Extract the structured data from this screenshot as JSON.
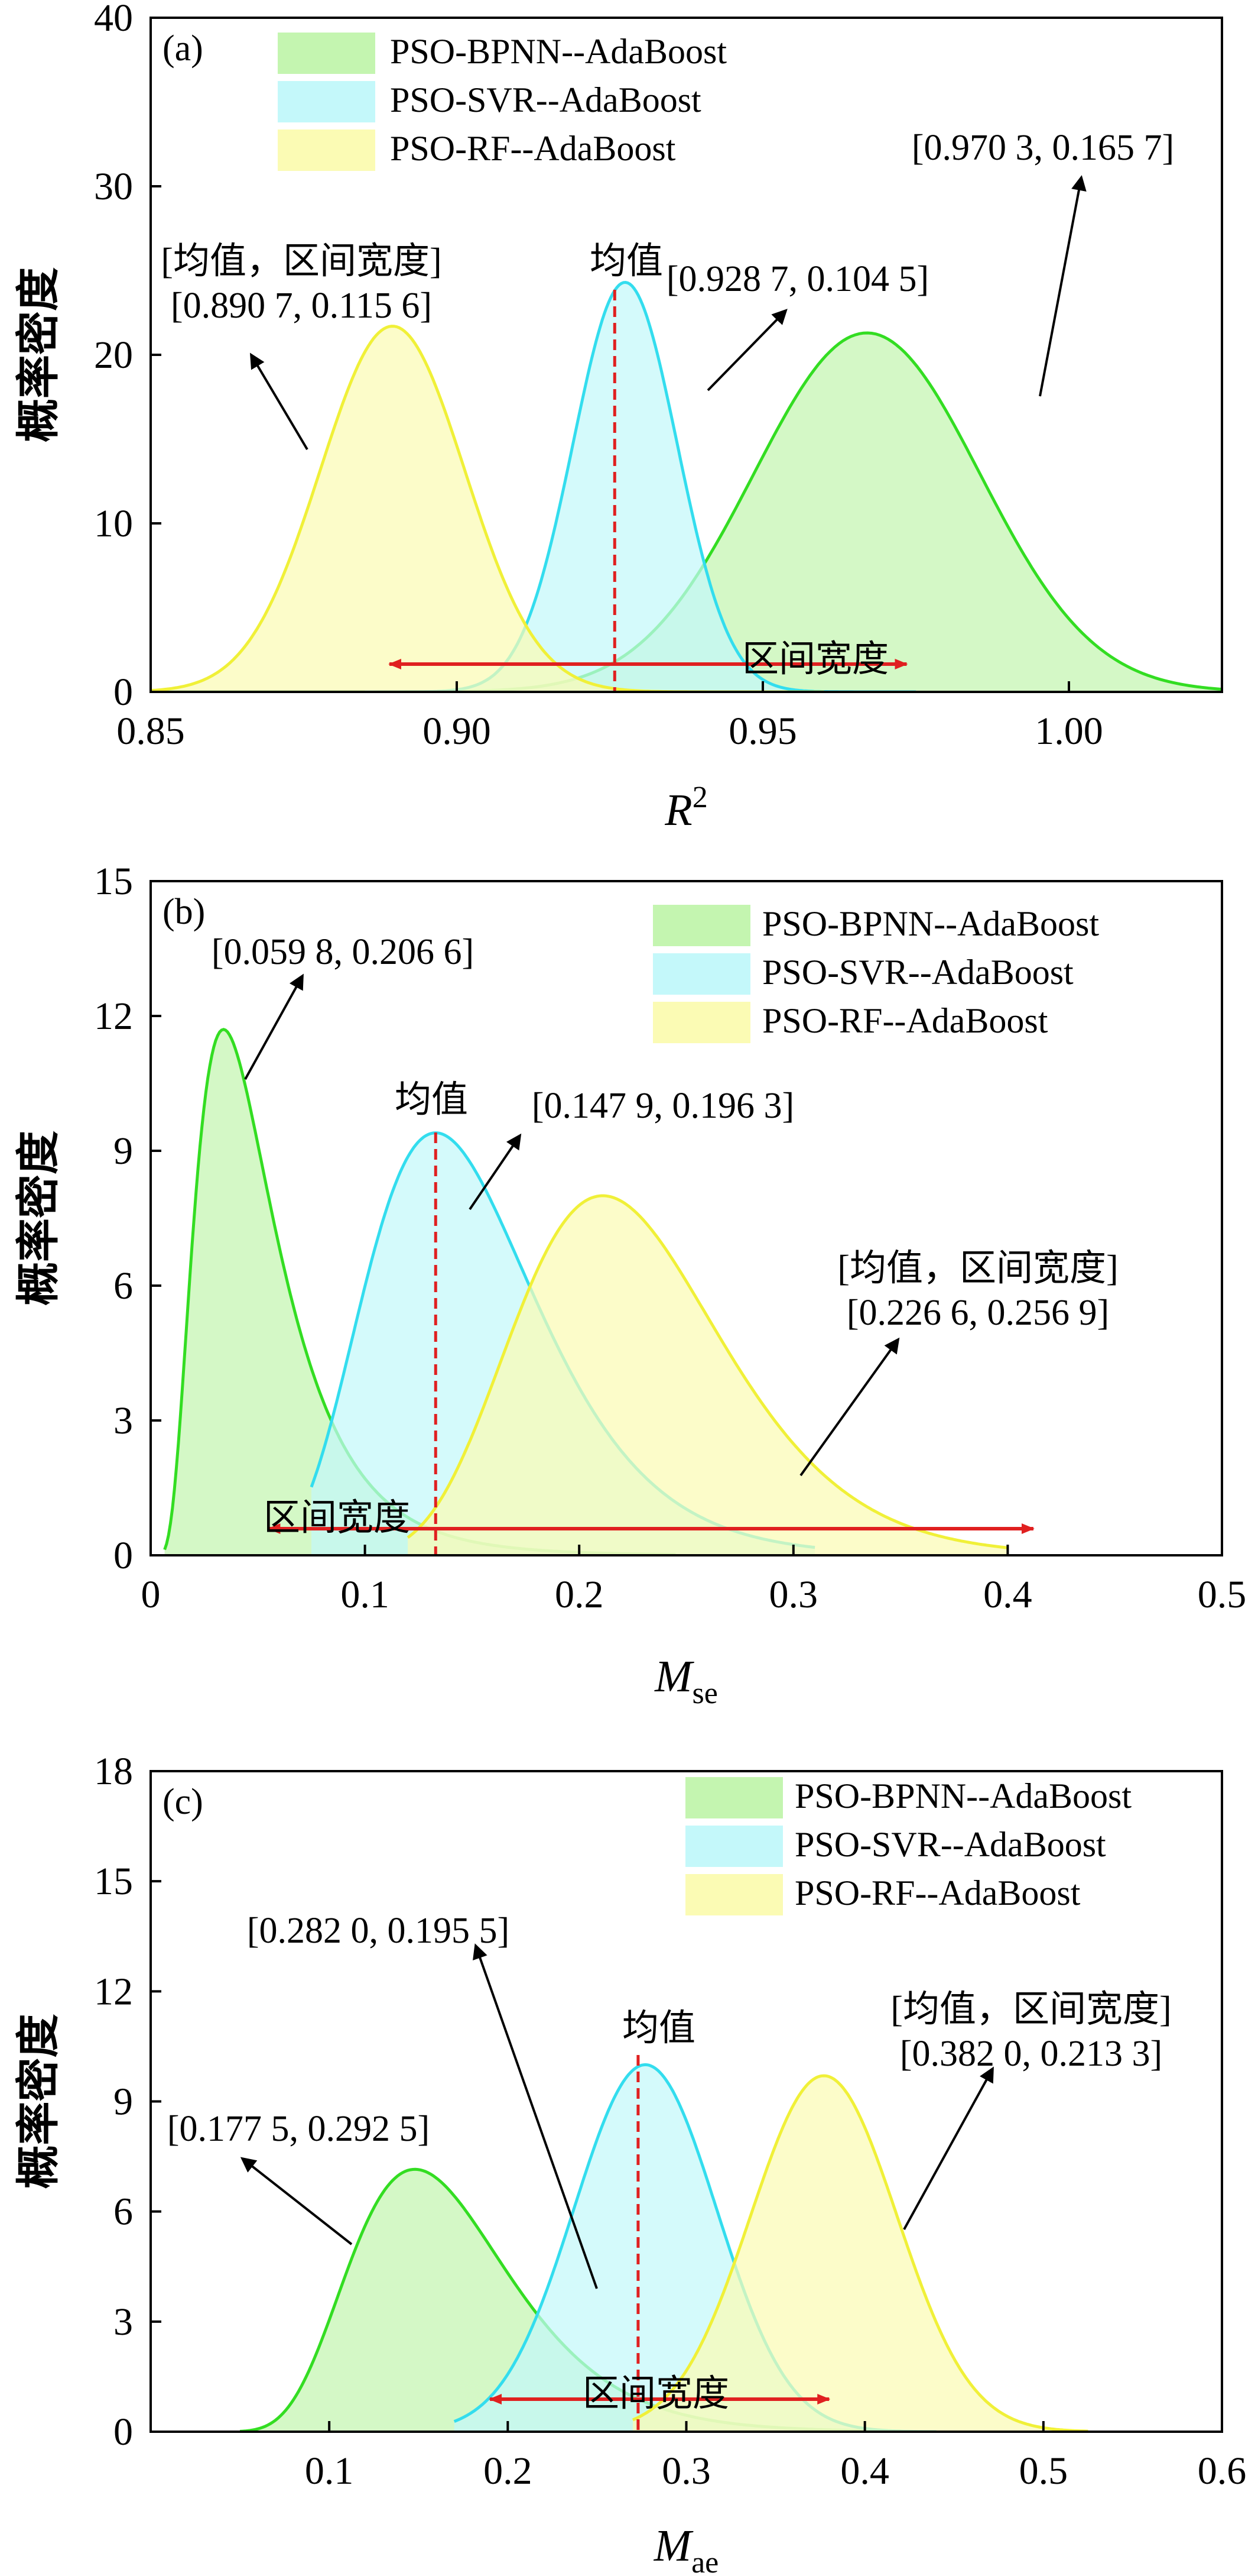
{
  "colors": {
    "bpnn_fill": "#c4f5b0",
    "bpnn_line": "#33dd22",
    "svr_fill": "#c4f8fa",
    "svr_line": "#33ddee",
    "rf_fill": "#fbfbb4",
    "rf_line": "#f0f038",
    "arrow_red": "#e02020",
    "mean_line": "#e02020"
  },
  "ylabel": "概率密度",
  "chart_data": [
    {
      "type": "area",
      "panel_tag": "(a)",
      "xlabel_main": "R",
      "xlabel_sup": "2",
      "ylabel": "概率密度",
      "xlim": [
        0.85,
        1.025
      ],
      "ylim": [
        0,
        40
      ],
      "xticks": [
        "0.85",
        "0.90",
        "0.95",
        "1.00"
      ],
      "yticks": [
        "0",
        "10",
        "20",
        "30",
        "40"
      ],
      "legend": [
        "PSO-BPNN--AdaBoost",
        "PSO-SVR--AdaBoost",
        "PSO-RF--AdaBoost"
      ],
      "legend_position": "top",
      "series": [
        {
          "name": "PSO-BPNN--AdaBoost",
          "mean": 0.9703,
          "interval_width": 0.1657,
          "peak_x": 0.967,
          "peak_y": 21.3,
          "sigma": 0.0185,
          "x_start": 0.85,
          "x_end": 1.025
        },
        {
          "name": "PSO-SVR--AdaBoost",
          "mean": 0.9287,
          "interval_width": 0.1045,
          "peak_x": 0.9275,
          "peak_y": 24.3,
          "sigma": 0.0085,
          "x_start": 0.885,
          "x_end": 0.975
        },
        {
          "name": "PSO-RF--AdaBoost",
          "mean": 0.8907,
          "interval_width": 0.1156,
          "peak_x": 0.8895,
          "peak_y": 21.7,
          "sigma": 0.0118,
          "x_start": 0.85,
          "x_end": 0.96
        }
      ],
      "mean_marker_x": 0.9258,
      "interval_arrow": [
        0.889,
        0.9735
      ],
      "annotations": [
        {
          "lines": [
            "[均值，区间宽度]",
            "[0.890 7, 0.115 6]"
          ]
        },
        {
          "lines": [
            "均值"
          ]
        },
        {
          "lines": [
            "[0.928 7, 0.104 5]"
          ]
        },
        {
          "lines": [
            "[0.970 3, 0.165 7]"
          ]
        },
        {
          "lines": [
            "区间宽度"
          ]
        }
      ]
    },
    {
      "type": "area",
      "panel_tag": "(b)",
      "xlabel_main": "M",
      "xlabel_sub": "se",
      "ylabel": "概率密度",
      "xlim": [
        0,
        0.5
      ],
      "ylim": [
        0,
        15
      ],
      "xticks": [
        "0",
        "0.1",
        "0.2",
        "0.3",
        "0.4",
        "0.5"
      ],
      "yticks": [
        "0",
        "3",
        "6",
        "9",
        "12",
        "15"
      ],
      "legend": [
        "PSO-BPNN--AdaBoost",
        "PSO-SVR--AdaBoost",
        "PSO-RF--AdaBoost"
      ],
      "legend_position": "top-right",
      "series": [
        {
          "name": "PSO-BPNN--AdaBoost",
          "mean": 0.0598,
          "interval_width": 0.2066,
          "peak_x": 0.034,
          "peak_y": 11.7,
          "lognormal_sigma": 0.55,
          "x_start": 0.0065,
          "x_end": 0.245
        },
        {
          "name": "PSO-SVR--AdaBoost",
          "mean": 0.1479,
          "interval_width": 0.1963,
          "peak_x": 0.133,
          "peak_y": 9.4,
          "lognormal_sigma": 0.3,
          "x_start": 0.075,
          "x_end": 0.31
        },
        {
          "name": "PSO-RF--AdaBoost",
          "mean": 0.2266,
          "interval_width": 0.2569,
          "peak_x": 0.211,
          "peak_y": 8.0,
          "lognormal_sigma": 0.23,
          "x_start": 0.12,
          "x_end": 0.4
        }
      ],
      "mean_marker_x": 0.133,
      "interval_arrow": [
        0.055,
        0.412
      ],
      "annotations": [
        {
          "lines": [
            "[0.059 8, 0.206 6]"
          ]
        },
        {
          "lines": [
            "均值"
          ]
        },
        {
          "lines": [
            "[0.147 9, 0.196 3]"
          ]
        },
        {
          "lines": [
            "[均值，区间宽度]",
            "[0.226 6, 0.256 9]"
          ]
        },
        {
          "lines": [
            "区间宽度"
          ]
        }
      ]
    },
    {
      "type": "area",
      "panel_tag": "(c)",
      "xlabel_main": "M",
      "xlabel_sub": "ae",
      "ylabel": "概率密度",
      "xlim": [
        0,
        0.6
      ],
      "ylim": [
        0,
        18
      ],
      "xticks": [
        "0.1",
        "0.2",
        "0.3",
        "0.4",
        "0.5",
        "0.6"
      ],
      "yticks": [
        "0",
        "3",
        "6",
        "9",
        "12",
        "15",
        "18"
      ],
      "legend": [
        "PSO-BPNN--AdaBoost",
        "PSO-SVR--AdaBoost",
        "PSO-RF--AdaBoost"
      ],
      "legend_position": "top-right",
      "series": [
        {
          "name": "PSO-BPNN--AdaBoost",
          "mean": 0.1775,
          "interval_width": 0.2925,
          "peak_x": 0.148,
          "peak_y": 7.15,
          "lognormal_sigma": 0.3,
          "x_start": 0.05,
          "x_end": 0.42
        },
        {
          "name": "PSO-SVR--AdaBoost",
          "mean": 0.282,
          "interval_width": 0.1955,
          "peak_x": 0.277,
          "peak_y": 10.0,
          "sigma": 0.04,
          "x_start": 0.17,
          "x_end": 0.44
        },
        {
          "name": "PSO-RF--AdaBoost",
          "mean": 0.382,
          "interval_width": 0.2133,
          "peak_x": 0.377,
          "peak_y": 9.7,
          "sigma": 0.041,
          "x_start": 0.27,
          "x_end": 0.525
        }
      ],
      "mean_marker_x": 0.273,
      "interval_arrow": [
        0.19,
        0.38
      ],
      "annotations": [
        {
          "lines": [
            "[0.282 0, 0.195 5]"
          ]
        },
        {
          "lines": [
            "均值"
          ]
        },
        {
          "lines": [
            "[均值，区间宽度]",
            "[0.382 0, 0.213 3]"
          ]
        },
        {
          "lines": [
            "[0.177 5, 0.292 5]"
          ]
        },
        {
          "lines": [
            "区间宽度"
          ]
        }
      ]
    }
  ]
}
